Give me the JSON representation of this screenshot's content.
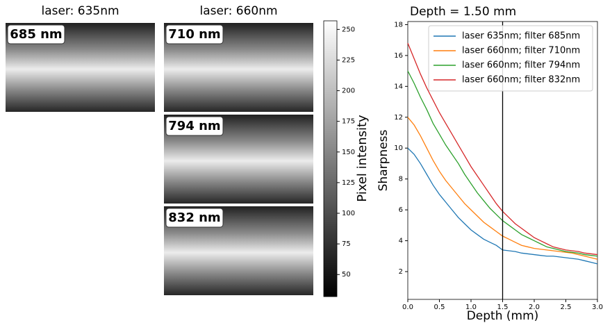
{
  "chart_data": [
    {
      "type": "image",
      "title": "laser: 635nm",
      "panels": [
        {
          "label": "685 nm",
          "color": "#1f77b4"
        }
      ]
    },
    {
      "type": "image",
      "title": "laser: 660nm",
      "panels": [
        {
          "label": "710 nm",
          "color": "#ff7f0e"
        },
        {
          "label": "794 nm",
          "color": "#2ca02c"
        },
        {
          "label": "832 nm",
          "color": "#d62728"
        }
      ]
    },
    {
      "type": "colorbar",
      "label": "Pixel intensity",
      "clim": [
        32,
        257
      ],
      "ticks": [
        50,
        75,
        100,
        125,
        150,
        175,
        200,
        225,
        250
      ]
    },
    {
      "type": "line",
      "title": "Depth = 1.50 mm",
      "xlabel": "Depth (mm)",
      "ylabel": "Sharpness",
      "xlim": [
        0,
        3
      ],
      "ylim": [
        0.2,
        18.2
      ],
      "xticks": [
        {
          "value": 0,
          "label": "0.0"
        },
        0.5,
        {
          "value": 1,
          "label": "1.0"
        },
        1.5,
        {
          "value": 2,
          "label": "2.0"
        },
        2.5,
        {
          "value": 3,
          "label": "3.0"
        }
      ],
      "yticks": [
        2,
        4,
        6,
        8,
        10,
        12,
        14,
        16,
        18
      ],
      "vline": 1.5,
      "legend": "upper right",
      "x": [
        0,
        0.1,
        0.2,
        0.3,
        0.4,
        0.5,
        0.6,
        0.7,
        0.8,
        0.9,
        1.0,
        1.1,
        1.2,
        1.3,
        1.4,
        1.5,
        1.6,
        1.7,
        1.8,
        1.9,
        2.0,
        2.1,
        2.2,
        2.3,
        2.4,
        2.5,
        2.6,
        2.7,
        2.8,
        2.9,
        3.0
      ],
      "series": [
        {
          "name": "laser 635nm; filter 685nm",
          "color": "#1f77b4",
          "values": [
            10.0,
            9.6,
            9.0,
            8.3,
            7.6,
            7.0,
            6.5,
            6.0,
            5.5,
            5.1,
            4.7,
            4.4,
            4.1,
            3.9,
            3.7,
            3.4,
            3.35,
            3.3,
            3.2,
            3.15,
            3.1,
            3.05,
            3.0,
            3.0,
            2.95,
            2.9,
            2.85,
            2.8,
            2.7,
            2.6,
            2.5
          ]
        },
        {
          "name": "laser 660nm; filter 710nm",
          "color": "#ff7f0e",
          "values": [
            12.0,
            11.5,
            10.8,
            10.0,
            9.2,
            8.5,
            7.9,
            7.4,
            6.9,
            6.4,
            6.0,
            5.6,
            5.2,
            4.9,
            4.6,
            4.3,
            4.1,
            3.9,
            3.7,
            3.6,
            3.5,
            3.45,
            3.4,
            3.35,
            3.3,
            3.25,
            3.2,
            3.1,
            3.0,
            2.9,
            2.8
          ]
        },
        {
          "name": "laser 660nm; filter 794nm",
          "color": "#2ca02c",
          "values": [
            15.0,
            14.2,
            13.3,
            12.5,
            11.6,
            10.9,
            10.2,
            9.6,
            9.0,
            8.3,
            7.7,
            7.1,
            6.6,
            6.1,
            5.7,
            5.3,
            5.0,
            4.7,
            4.4,
            4.2,
            4.0,
            3.8,
            3.6,
            3.5,
            3.4,
            3.3,
            3.25,
            3.2,
            3.1,
            3.05,
            3.0
          ]
        },
        {
          "name": "laser 660nm; filter 832nm",
          "color": "#d62728",
          "values": [
            16.8,
            15.8,
            14.8,
            13.9,
            13.1,
            12.3,
            11.6,
            10.9,
            10.2,
            9.5,
            8.8,
            8.2,
            7.6,
            7.0,
            6.4,
            5.9,
            5.5,
            5.1,
            4.8,
            4.5,
            4.2,
            4.0,
            3.8,
            3.6,
            3.5,
            3.4,
            3.35,
            3.3,
            3.2,
            3.15,
            3.1
          ]
        }
      ]
    }
  ]
}
